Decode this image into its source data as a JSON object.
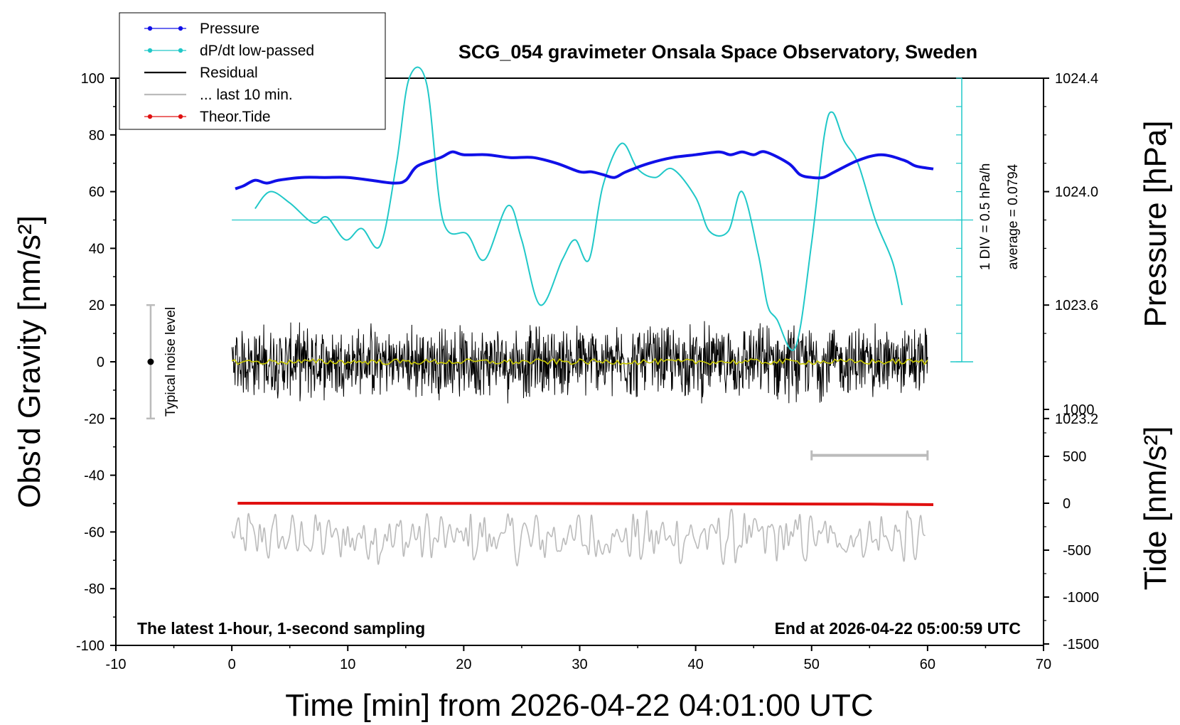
{
  "chart_data": {
    "type": "line",
    "title": "SCG_054 gravimeter Onsala Space Observatory, Sweden",
    "xlabel": "Time [min] from 2026-04-22 04:01:00 UTC",
    "ylabel_left": "Obs'd Gravity [nm/s²]",
    "ylabel_right_top": "Pressure [hPa]",
    "ylabel_right_bottom": "Tide [nm/s²]",
    "xlim": [
      -10,
      70
    ],
    "ylim": [
      -100,
      100
    ],
    "pressure_ylim": [
      1023.0,
      1024.5
    ],
    "tide_ylim": [
      -1500,
      1000
    ],
    "x_ticks": [
      "-10",
      "0",
      "10",
      "20",
      "30",
      "40",
      "50",
      "60",
      "70"
    ],
    "y_ticks": [
      "-100",
      "-80",
      "-60",
      "-40",
      "-20",
      "0",
      "20",
      "40",
      "60",
      "80",
      "100"
    ],
    "pressure_ticks": [
      "1023.2",
      "1023.6",
      "1024.0",
      "1024.4"
    ],
    "tide_ticks": [
      "-1500",
      "-1000",
      "-500",
      "0",
      "500",
      "1000"
    ],
    "legend": {
      "position": "top-left",
      "entries": [
        {
          "label": "Pressure",
          "color": "#1010e8",
          "marker": "dot"
        },
        {
          "label": "dP/dt low-passed",
          "color": "#20c8c8",
          "marker": "dot"
        },
        {
          "label": "Residual",
          "color": "#000000",
          "marker": "line"
        },
        {
          "label": "... last 10 min.",
          "color": "#bbbbbb",
          "marker": "line"
        },
        {
          "label": "Theor.Tide",
          "color": "#e01010",
          "marker": "dot"
        }
      ]
    },
    "annotations": {
      "noise": "Typical noise level",
      "dpdt_scale": "1 DIV = 0.5 hPa/h",
      "dpdt_average": "average = 0.0794",
      "bottom_left": "The latest 1-hour, 1-second sampling",
      "bottom_right": "End at 2026-04-22 05:00:59 UTC"
    },
    "noise_bar": {
      "x": -7,
      "center": 0,
      "half_range": 20
    },
    "last10_bar": {
      "x_start": 50,
      "x_end": 60,
      "y": -33
    },
    "series": [
      {
        "name": "Pressure",
        "axis": "pressure",
        "color": "#1010e8",
        "x": [
          0.3,
          1,
          2,
          3,
          4,
          6,
          8,
          10,
          12,
          14,
          15,
          16,
          18,
          19,
          20,
          22,
          24,
          26,
          28,
          30,
          31,
          32,
          33,
          34,
          36,
          38,
          40,
          42,
          43,
          44,
          45,
          46,
          48,
          49,
          50,
          51,
          52,
          54,
          56,
          58,
          59,
          60.5
        ],
        "y": [
          1024.01,
          1024.02,
          1024.04,
          1024.03,
          1024.04,
          1024.05,
          1024.05,
          1024.05,
          1024.04,
          1024.03,
          1024.04,
          1024.09,
          1024.12,
          1024.14,
          1024.13,
          1024.13,
          1024.12,
          1024.12,
          1024.1,
          1024.07,
          1024.07,
          1024.06,
          1024.05,
          1024.07,
          1024.1,
          1024.12,
          1024.13,
          1024.14,
          1024.13,
          1024.14,
          1024.13,
          1024.14,
          1024.1,
          1024.06,
          1024.05,
          1024.05,
          1024.07,
          1024.11,
          1024.13,
          1024.11,
          1024.09,
          1024.08
        ]
      },
      {
        "name": "dP/dt low-passed",
        "axis": "dpdt",
        "color": "#20c8c8",
        "x": [
          2,
          3.3,
          5,
          7,
          8.2,
          9.8,
          11.2,
          12.8,
          14.2,
          15.3,
          16.8,
          18.2,
          20.3,
          21.8,
          23.8,
          25,
          26.6,
          28.5,
          29.6,
          30.8,
          32,
          33.6,
          35,
          36.5,
          38,
          40,
          41.2,
          42.8,
          44,
          45.4,
          46.2,
          47,
          48.6,
          50,
          51.1,
          51.8,
          52.8,
          54,
          55.5,
          57,
          57.8
        ],
        "y": [
          54,
          60,
          56,
          49,
          51,
          43,
          47,
          41,
          70,
          100,
          98,
          50,
          45,
          36,
          55,
          43,
          20,
          36,
          43,
          36,
          62,
          77,
          68,
          65,
          68,
          58,
          46,
          46,
          60,
          38,
          20,
          15,
          5,
          42,
          80,
          88,
          78,
          70,
          50,
          35,
          20
        ]
      },
      {
        "name": "Residual",
        "axis": "gravity",
        "color": "#000000",
        "x_range": [
          0,
          60
        ],
        "noise_amplitude": 10
      },
      {
        "name": "... last 10 min.",
        "axis": "gravity",
        "color": "#bbbbbb",
        "x_range": [
          0,
          60
        ],
        "center": -62
      },
      {
        "name": "Theor.Tide",
        "axis": "tide",
        "color": "#e01010",
        "x": [
          0.5,
          20,
          40,
          50,
          55,
          60.5
        ],
        "y": [
          0,
          -2,
          -5,
          -8,
          -10,
          -15
        ]
      }
    ]
  }
}
